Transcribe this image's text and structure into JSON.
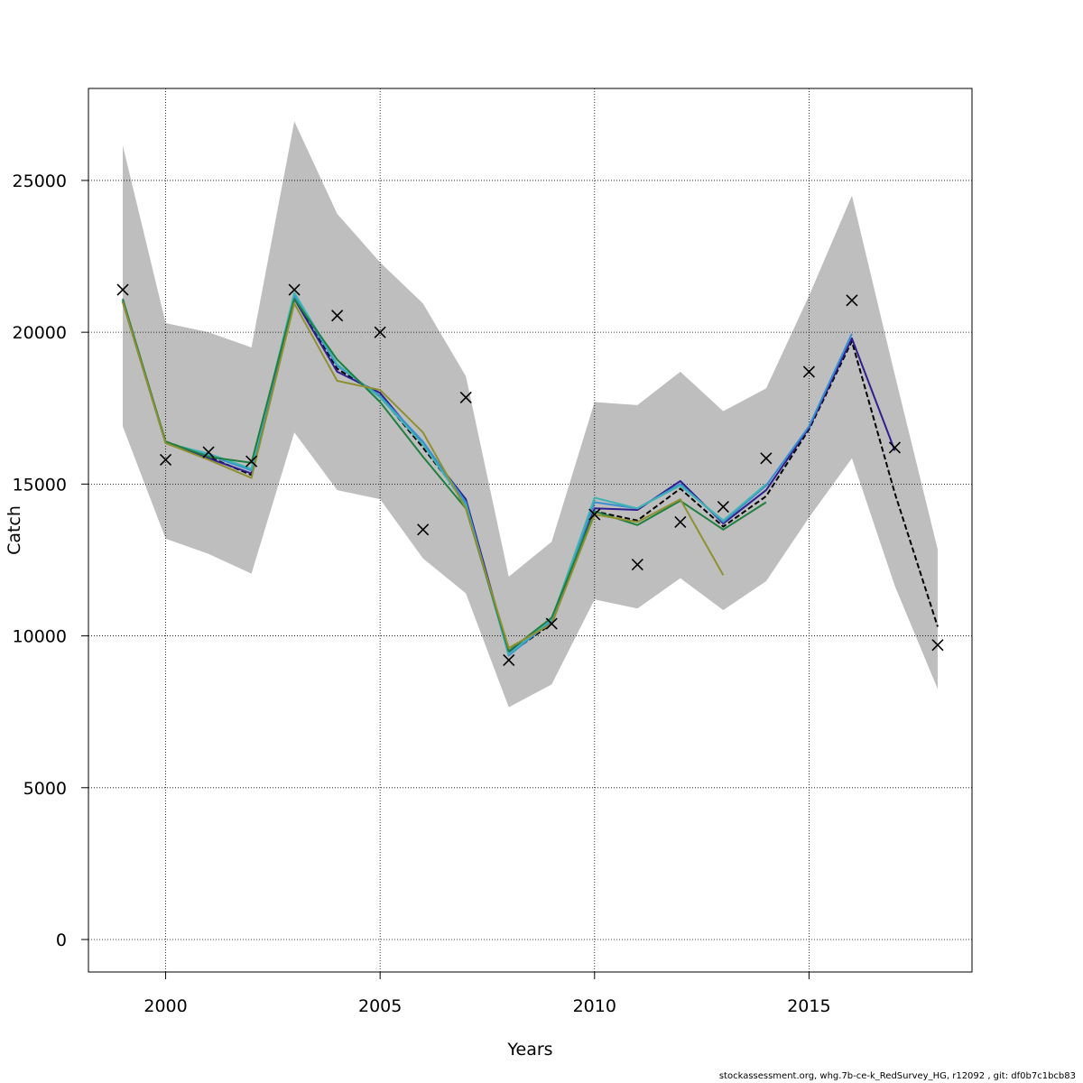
{
  "footer": "stockassessment.org, whg.7b-ce-k_RedSurvey_HG, r12092 , git: df0b7c1bcb83",
  "chart_data": {
    "type": "line",
    "title": "",
    "xlabel": "Years",
    "ylabel": "Catch",
    "xlim": [
      1998.2,
      2018.8
    ],
    "ylim": [
      -1070,
      28030
    ],
    "x_ticks": [
      2000,
      2005,
      2010,
      2015
    ],
    "y_ticks": [
      0,
      5000,
      10000,
      15000,
      20000,
      25000
    ],
    "grid": true,
    "legend": "none",
    "x": [
      1999,
      2000,
      2001,
      2002,
      2003,
      2004,
      2005,
      2006,
      2007,
      2008,
      2009,
      2010,
      2011,
      2012,
      2013,
      2014,
      2015,
      2016,
      2017,
      2018
    ],
    "confidence_band": {
      "color": "#bebebe",
      "lower": [
        16900,
        13200,
        12700,
        12050,
        16700,
        14800,
        14500,
        12550,
        11400,
        7650,
        8400,
        11200,
        10900,
        11900,
        10850,
        11800,
        13900,
        15850,
        11650,
        8250
      ],
      "upper": [
        26150,
        20300,
        20000,
        19500,
        26950,
        23900,
        22300,
        20950,
        18550,
        11950,
        13100,
        17700,
        17600,
        18700,
        17400,
        18150,
        21200,
        24500,
        18600,
        12850
      ]
    },
    "series": [
      {
        "color": "#000000",
        "dashed": true,
        "values": [
          21000,
          16400,
          15900,
          15300,
          21200,
          18800,
          17900,
          16200,
          14400,
          9400,
          10400,
          14100,
          13800,
          14850,
          13600,
          14600,
          16800,
          19700,
          14700,
          10300
        ]
      },
      {
        "color": "#2f1f8f",
        "dashed": false,
        "values": [
          21000,
          16350,
          15850,
          15350,
          21100,
          18700,
          18000,
          16300,
          14500,
          9450,
          10450,
          14200,
          14150,
          15100,
          13700,
          14800,
          16850,
          19800,
          16100,
          null
        ]
      },
      {
        "color": "#3a8fd0",
        "dashed": false,
        "values": [
          21050,
          16350,
          15950,
          15450,
          21200,
          18900,
          17900,
          16400,
          14400,
          9350,
          10500,
          14400,
          14200,
          15000,
          13750,
          14950,
          16900,
          19950,
          null,
          null
        ]
      },
      {
        "color": "#3fb3b3",
        "dashed": false,
        "values": [
          21050,
          16350,
          16000,
          15500,
          21300,
          18950,
          17850,
          16300,
          14300,
          9400,
          10550,
          14550,
          14200,
          14950,
          13800,
          15000,
          null,
          null,
          null,
          null
        ]
      },
      {
        "color": "#1f7f3f",
        "dashed": false,
        "values": [
          21100,
          16400,
          15900,
          15700,
          21100,
          19100,
          17700,
          15900,
          14200,
          9500,
          10600,
          14100,
          13650,
          14450,
          13500,
          14400,
          null,
          null,
          null,
          null
        ]
      },
      {
        "color": "#8f9030",
        "dashed": false,
        "values": [
          21000,
          16350,
          15800,
          15200,
          20950,
          18400,
          18100,
          16700,
          14200,
          9600,
          10400,
          14000,
          13750,
          14500,
          12000,
          null,
          null,
          null,
          null,
          null
        ]
      }
    ],
    "observations": {
      "marker": "x",
      "color": "#000000",
      "values": [
        21400,
        15800,
        16050,
        15750,
        21400,
        20550,
        20000,
        13500,
        17850,
        9200,
        10400,
        14000,
        12350,
        13750,
        14250,
        15850,
        18700,
        21050,
        16200,
        9700
      ]
    }
  }
}
